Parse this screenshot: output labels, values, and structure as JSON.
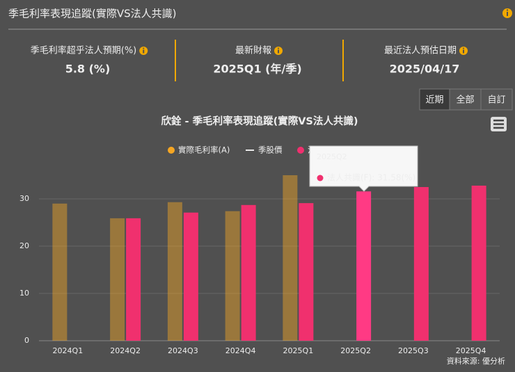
{
  "header": {
    "title": "季毛利率表現追蹤(實際VS法人共識)"
  },
  "stats": [
    {
      "label": "季毛利率超乎法人預期(%)",
      "value": "5.8 (%)"
    },
    {
      "label": "最新財報",
      "value": "2025Q1 (年/季)"
    },
    {
      "label": "最近法人預估日期",
      "value": "2025/04/17"
    }
  ],
  "buttons": [
    "近期",
    "全部",
    "自訂"
  ],
  "chart_data": {
    "type": "bar",
    "title": "欣銓 - 季毛利率表現追蹤(實際VS法人共識)",
    "categories": [
      "2024Q1",
      "2024Q2",
      "2024Q3",
      "2024Q4",
      "2025Q1",
      "2025Q2",
      "2025Q3",
      "2025Q4"
    ],
    "series": [
      {
        "name": "實際毛利率(A)",
        "type": "bar",
        "color": "#f5a623",
        "values": [
          29.0,
          25.9,
          29.3,
          27.4,
          35.0,
          null,
          null,
          null
        ]
      },
      {
        "name": "季股價",
        "type": "line",
        "color": "#e8e8e8",
        "values": [
          null,
          null,
          null,
          null,
          null,
          null,
          null,
          null
        ]
      },
      {
        "name": "法人共識(F)",
        "type": "bar",
        "color": "#f0306e",
        "values": [
          null,
          25.9,
          27.1,
          28.7,
          29.1,
          31.58,
          32.5,
          32.8
        ]
      }
    ],
    "ylim": [
      0,
      40
    ],
    "yticks": [
      0,
      10,
      20,
      30
    ],
    "grid": true,
    "tooltip": {
      "text": "法人共識(F): 31.58(%)"
    },
    "source": "資料來源: 優分析"
  }
}
